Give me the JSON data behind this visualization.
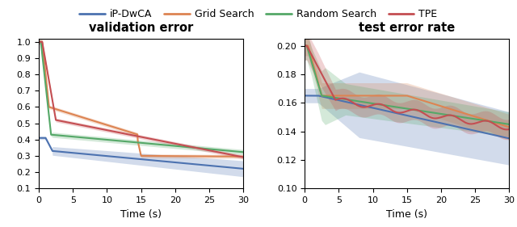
{
  "legend_labels": [
    "iP-DwCA",
    "Grid Search",
    "Random Search",
    "TPE"
  ],
  "colors": [
    "#4C72B0",
    "#DD8452",
    "#55A868",
    "#C44E52"
  ],
  "left_title": "validation error",
  "right_title": "test error rate",
  "xlabel": "Time (s)",
  "xlim": [
    0,
    30
  ],
  "left_ylim": [
    0.1,
    1.02
  ],
  "right_ylim": [
    0.1,
    0.205
  ],
  "left_yticks": [
    0.1,
    0.2,
    0.3,
    0.4,
    0.5,
    0.6,
    0.7,
    0.8,
    0.9,
    1.0
  ],
  "right_yticks": [
    0.1,
    0.12,
    0.14,
    0.16,
    0.18,
    0.2
  ],
  "figsize": [
    6.4,
    2.81
  ],
  "dpi": 100,
  "alpha_fill": 0.25
}
